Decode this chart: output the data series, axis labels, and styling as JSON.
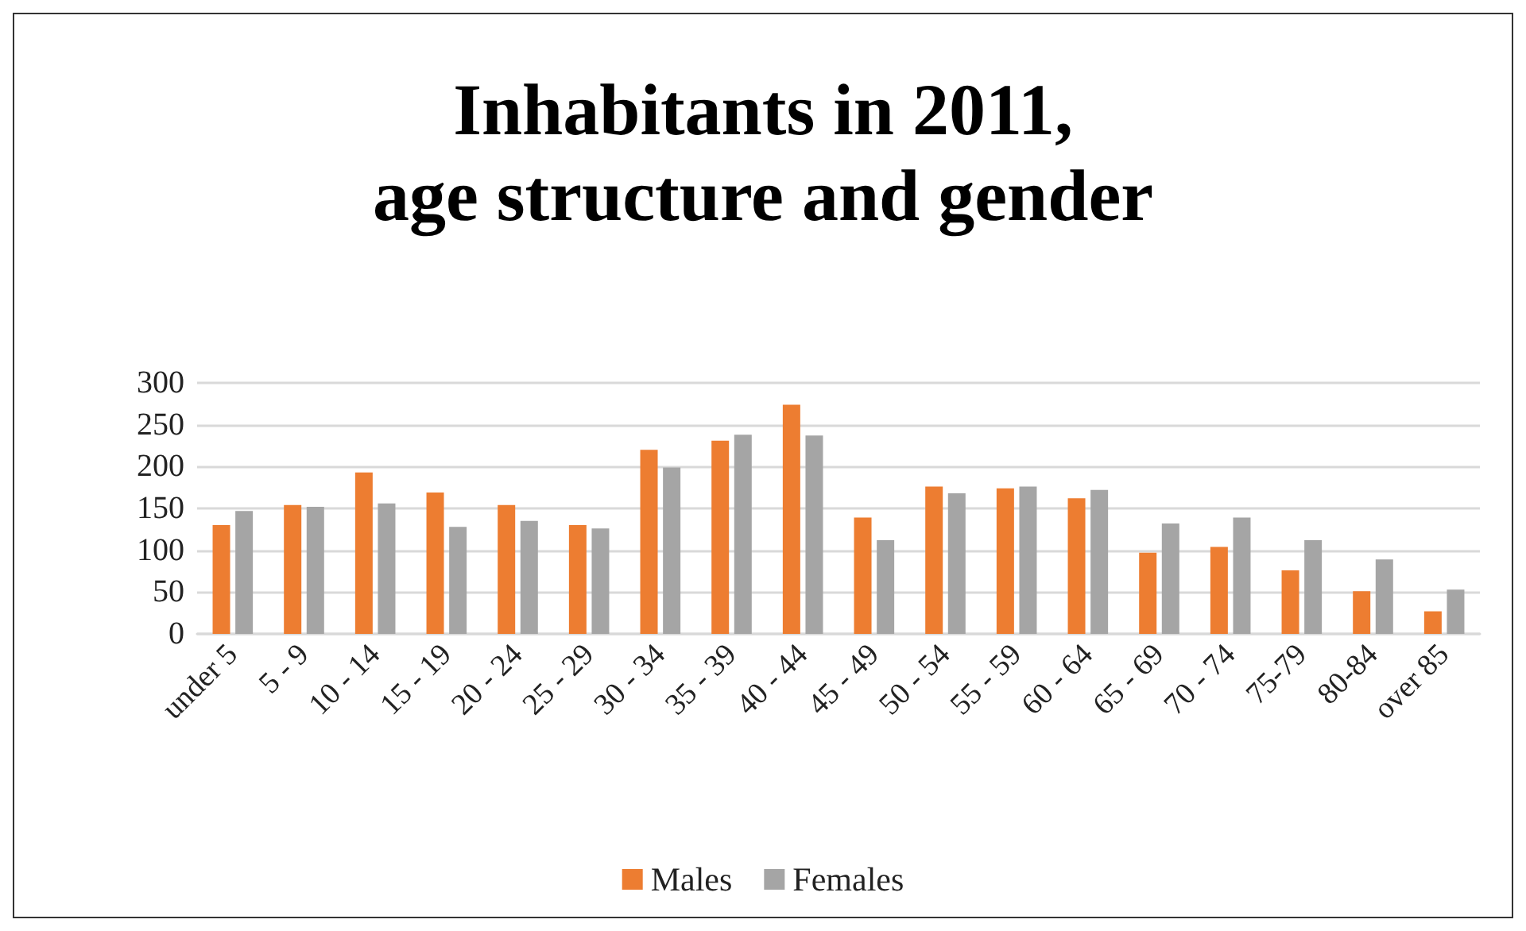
{
  "chart_data": {
    "type": "bar",
    "title": "Inhabitants in 2011,\nage structure and gender",
    "categories": [
      "under 5",
      "5 - 9",
      "10 - 14",
      "15 - 19",
      "20 - 24",
      "25 - 29",
      "30 - 34",
      "35 - 39",
      "40 - 44",
      "45 - 49",
      "50 - 54",
      "55 - 59",
      "60 - 64",
      "65 - 69",
      "70 - 74",
      "75-79",
      "80-84",
      "over 85"
    ],
    "series": [
      {
        "name": "Males",
        "color": "#ed7d31",
        "values": [
          130,
          154,
          193,
          169,
          154,
          130,
          220,
          231,
          274,
          139,
          176,
          174,
          162,
          97,
          104,
          76,
          51,
          27
        ]
      },
      {
        "name": "Females",
        "color": "#a5a5a5",
        "values": [
          147,
          152,
          156,
          128,
          135,
          126,
          199,
          238,
          237,
          112,
          168,
          176,
          172,
          132,
          139,
          112,
          89,
          53
        ]
      }
    ],
    "ylim": [
      0,
      300
    ],
    "yticks": [
      0,
      50,
      100,
      150,
      200,
      250,
      300
    ],
    "grid": "y",
    "legend": "bottom"
  }
}
